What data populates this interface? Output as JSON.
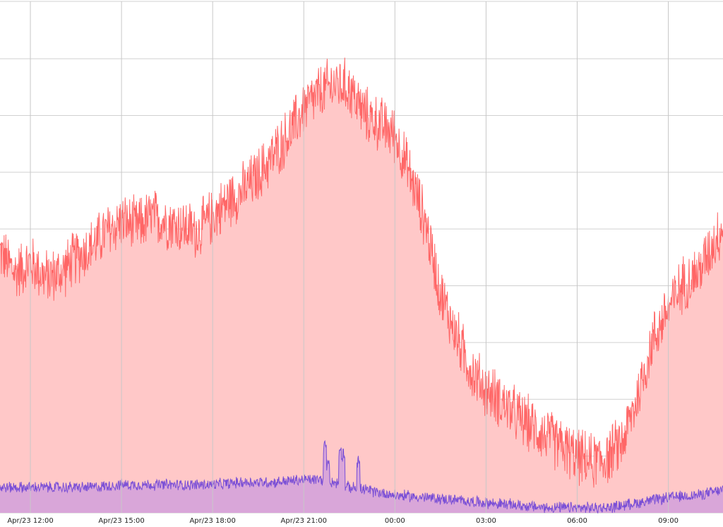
{
  "chart_data": {
    "type": "area",
    "title": "",
    "xlabel": "",
    "ylabel": "",
    "x_tick_labels": [
      "Apr/23 12:00",
      "Apr/23 15:00",
      "Apr/23 18:00",
      "Apr/23 21:00",
      "00:00",
      "03:00",
      "06:00",
      "09:00"
    ],
    "x_tick_hours": [
      12,
      15,
      18,
      21,
      24,
      27,
      30,
      33
    ],
    "xlim_hours": [
      11,
      34.8
    ],
    "ylim": [
      0,
      100
    ],
    "y_gridlines": [
      0,
      11.1,
      22.2,
      33.3,
      44.4,
      55.5,
      66.6,
      77.7,
      88.8,
      100
    ],
    "grid": true,
    "legend": "none",
    "series": [
      {
        "color": "#ff6666",
        "fill": "#ffc8c8",
        "noise": 3.5,
        "x_hours": [
          11,
          11.5,
          12,
          12.5,
          13,
          13.5,
          14,
          14.5,
          15,
          15.5,
          16,
          16.5,
          17,
          17.5,
          18,
          18.5,
          19,
          19.5,
          20,
          20.5,
          21,
          21.5,
          22,
          22.5,
          23,
          23.5,
          24,
          24.5,
          25,
          25.5,
          26,
          26.5,
          27,
          27.5,
          28,
          28.5,
          29,
          29.5,
          30,
          30.5,
          31,
          31.5,
          32,
          32.5,
          33,
          33.5,
          34,
          34.5,
          34.8
        ],
        "values": [
          51,
          47,
          49,
          46,
          47,
          50,
          52,
          55,
          57,
          56,
          58,
          57,
          56,
          55,
          58,
          61,
          63,
          66,
          70,
          74,
          79,
          82,
          84,
          83,
          78,
          76,
          74,
          66,
          57,
          43,
          35,
          28,
          24,
          22,
          19,
          17,
          15,
          13,
          11,
          10,
          11,
          14,
          23,
          34,
          40,
          45,
          47,
          53,
          56
        ]
      },
      {
        "color": "#7a4fd6",
        "fill": "#d9a6d9",
        "noise": 0.7,
        "x_hours": [
          11,
          12,
          13,
          14,
          15,
          16,
          17,
          18,
          19,
          20,
          21,
          21.5,
          22,
          22.5,
          23,
          24,
          25,
          26,
          27,
          28,
          29,
          30,
          31,
          32,
          33,
          34,
          34.8
        ],
        "values": [
          5,
          5,
          5,
          5,
          5.5,
          5.5,
          5.5,
          5.5,
          6,
          6,
          6.5,
          6.5,
          6,
          5,
          4.5,
          3.5,
          3,
          2.5,
          2,
          1.5,
          1,
          1,
          1,
          2,
          3,
          3.5,
          4.5
        ],
        "spikes": [
          {
            "x_hour": 21.7,
            "value": 14
          },
          {
            "x_hour": 21.8,
            "value": 11
          },
          {
            "x_hour": 22.2,
            "value": 13
          },
          {
            "x_hour": 22.3,
            "value": 12
          },
          {
            "x_hour": 22.8,
            "value": 11
          }
        ]
      }
    ]
  }
}
